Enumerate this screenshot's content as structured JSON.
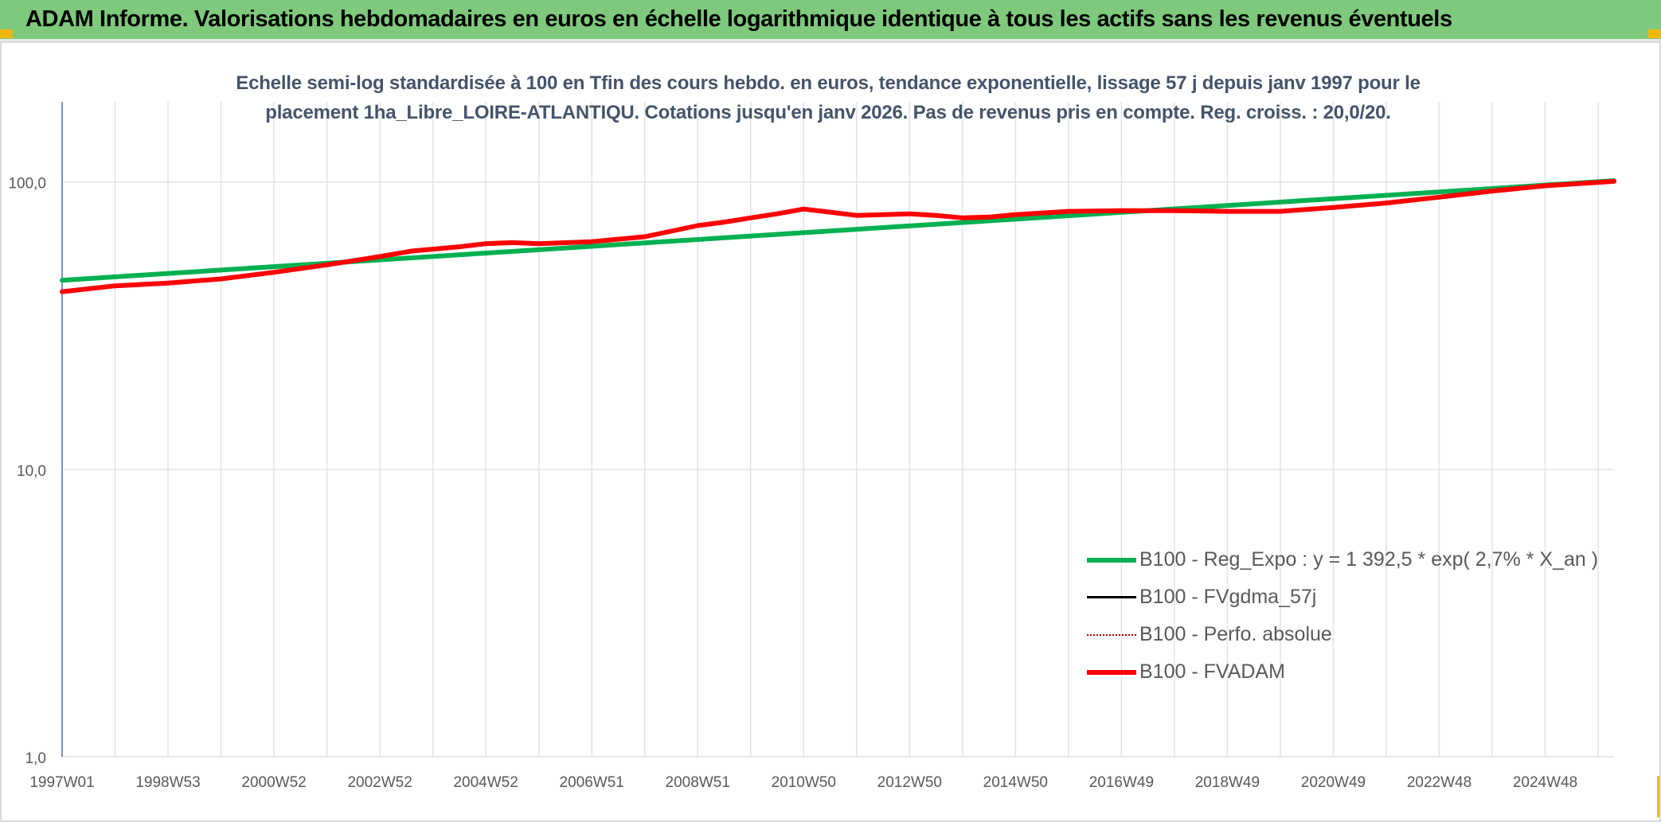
{
  "header": {
    "title": "ADAM Informe. Valorisations hebdomadaires en euros en échelle logarithmique identique à tous les actifs sans les revenus éventuels",
    "bg_color": "#7ec97c",
    "accent_color": "#f2b90c"
  },
  "chart_data": {
    "type": "line",
    "title_line1": "Echelle semi-log standardisée à 100 en Tfin des cours hebdo. en euros, tendance exponentielle, lissage 57 j depuis janv 1997 pour le",
    "title_line2": "placement 1ha_Libre_LOIRE-ATLANTIQU. Cotations jusqu'en janv 2026. Pas de revenus pris en compte. Reg. croiss. : 20,0/20.",
    "yscale": "log",
    "ylim": [
      1,
      190
    ],
    "xlim": [
      1997.0,
      2026.3
    ],
    "y_ticks": [
      {
        "value": 1,
        "label": "1,0"
      },
      {
        "value": 10,
        "label": "10,0"
      },
      {
        "value": 100,
        "label": "100,0"
      }
    ],
    "x_ticks": [
      {
        "value": 1997.0,
        "label": "1997W01"
      },
      {
        "value": 1999.0,
        "label": "1998W53"
      },
      {
        "value": 2001.0,
        "label": "2000W52"
      },
      {
        "value": 2003.0,
        "label": "2002W52"
      },
      {
        "value": 2005.0,
        "label": "2004W52"
      },
      {
        "value": 2007.0,
        "label": "2006W51"
      },
      {
        "value": 2009.0,
        "label": "2008W51"
      },
      {
        "value": 2011.0,
        "label": "2010W50"
      },
      {
        "value": 2013.0,
        "label": "2012W50"
      },
      {
        "value": 2015.0,
        "label": "2014W50"
      },
      {
        "value": 2017.0,
        "label": "2016W49"
      },
      {
        "value": 2019.0,
        "label": "2018W49"
      },
      {
        "value": 2021.0,
        "label": "2020W49"
      },
      {
        "value": 2023.0,
        "label": "2022W48"
      },
      {
        "value": 2025.0,
        "label": "2024W48"
      }
    ],
    "grid": true,
    "legend_position": "bottom-right",
    "series": [
      {
        "name": "B100 - Reg_Expo : y = 1 392,5 * exp( 2,7% *  X_an )",
        "color": "#00b050",
        "style": "solid-thick",
        "x": [
          1997.0,
          2026.3
        ],
        "y": [
          45.5,
          101.0
        ]
      },
      {
        "name": "B100 - FVgdma_57j",
        "color": "#000000",
        "style": "solid-thin",
        "x": [],
        "y": []
      },
      {
        "name": "B100 - Perfo. absolue",
        "color": "#c00000",
        "style": "dotted",
        "x": [],
        "y": []
      },
      {
        "name": "B100 - FVADAM",
        "color": "#ff0000",
        "style": "solid-thick",
        "x": [
          1997.0,
          1998.0,
          1999.0,
          2000.0,
          2001.0,
          2002.0,
          2003.0,
          2003.6,
          2004.5,
          2005.0,
          2005.5,
          2006.0,
          2007.0,
          2008.0,
          2009.0,
          2009.5,
          2010.0,
          2010.5,
          2011.0,
          2011.5,
          2012.0,
          2012.5,
          2013.0,
          2013.5,
          2014.0,
          2014.5,
          2015.0,
          2016.0,
          2017.0,
          2018.0,
          2019.0,
          2020.0,
          2021.0,
          2022.0,
          2023.0,
          2024.0,
          2025.0,
          2026.3
        ],
        "y": [
          41.5,
          43.5,
          44.5,
          46.0,
          48.5,
          51.5,
          55.0,
          57.5,
          59.5,
          61.0,
          61.5,
          61.0,
          62.0,
          64.5,
          70.5,
          72.5,
          75.0,
          77.5,
          80.5,
          78.5,
          76.5,
          77.0,
          77.5,
          76.5,
          75.0,
          75.5,
          77.0,
          79.0,
          79.5,
          79.5,
          79.0,
          79.0,
          81.5,
          84.5,
          88.5,
          93.0,
          97.0,
          100.5
        ]
      }
    ]
  }
}
